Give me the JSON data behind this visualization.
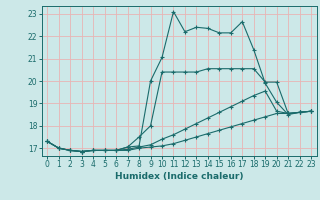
{
  "xlabel": "Humidex (Indice chaleur)",
  "bg_color": "#cce8e8",
  "grid_color": "#e8b4b4",
  "line_color": "#1a6b6b",
  "xlim": [
    -0.5,
    23.5
  ],
  "ylim": [
    16.65,
    23.35
  ],
  "xticks": [
    0,
    1,
    2,
    3,
    4,
    5,
    6,
    7,
    8,
    9,
    10,
    11,
    12,
    13,
    14,
    15,
    16,
    17,
    18,
    19,
    20,
    21,
    22,
    23
  ],
  "yticks": [
    17,
    18,
    19,
    20,
    21,
    22,
    23
  ],
  "lines": [
    [
      17.3,
      17.0,
      16.9,
      16.85,
      16.9,
      16.9,
      16.9,
      17.05,
      17.1,
      20.0,
      21.05,
      23.1,
      22.2,
      22.4,
      22.35,
      22.15,
      22.15,
      22.65,
      21.4,
      19.9,
      19.05,
      18.5,
      18.6,
      18.65
    ],
    [
      17.3,
      17.0,
      16.9,
      16.85,
      16.9,
      16.9,
      16.9,
      17.05,
      17.5,
      18.0,
      20.4,
      20.4,
      20.4,
      20.4,
      20.55,
      20.55,
      20.55,
      20.55,
      20.55,
      19.95,
      19.95,
      18.55,
      18.6,
      18.65
    ],
    [
      17.3,
      17.0,
      16.9,
      16.85,
      16.9,
      16.9,
      16.9,
      16.95,
      17.05,
      17.15,
      17.4,
      17.6,
      17.85,
      18.1,
      18.35,
      18.6,
      18.85,
      19.1,
      19.35,
      19.55,
      18.65,
      18.55,
      18.6,
      18.65
    ],
    [
      17.3,
      17.0,
      16.9,
      16.85,
      16.9,
      16.9,
      16.9,
      16.9,
      17.0,
      17.05,
      17.1,
      17.2,
      17.35,
      17.5,
      17.65,
      17.8,
      17.95,
      18.1,
      18.25,
      18.4,
      18.55,
      18.55,
      18.6,
      18.65
    ]
  ]
}
